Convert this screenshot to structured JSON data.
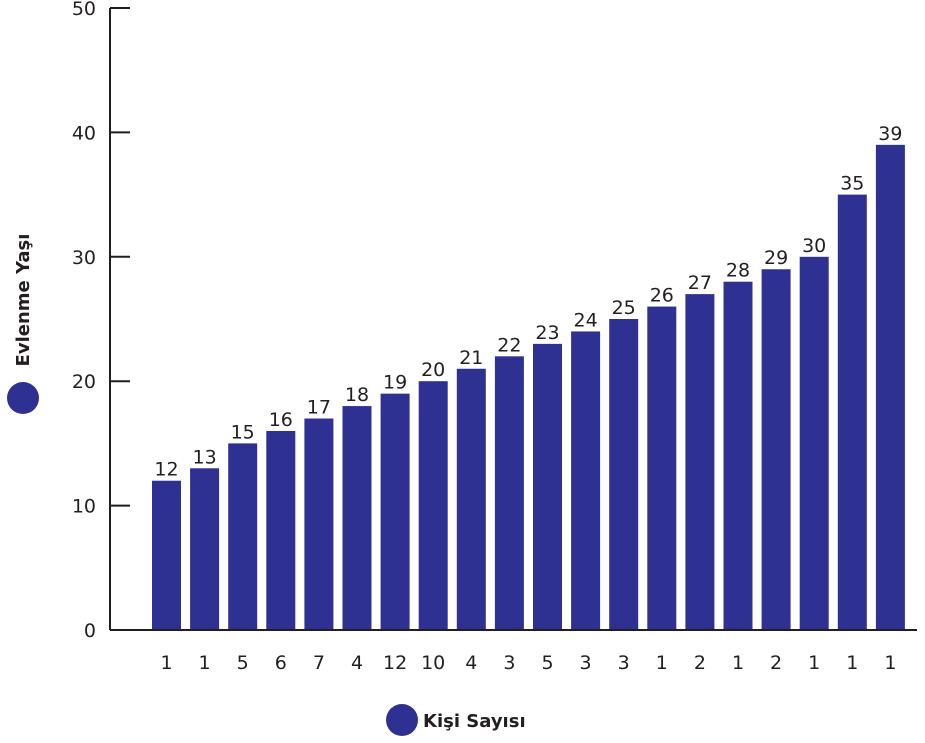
{
  "chart_data": {
    "type": "bar",
    "categories": [
      "1",
      "1",
      "5",
      "6",
      "7",
      "4",
      "12",
      "10",
      "4",
      "3",
      "5",
      "3",
      "3",
      "1",
      "2",
      "1",
      "2",
      "1",
      "1",
      "1"
    ],
    "values": [
      12,
      13,
      15,
      16,
      17,
      18,
      19,
      20,
      21,
      22,
      23,
      24,
      25,
      26,
      27,
      28,
      29,
      30,
      35,
      39
    ],
    "xlabel": "Kişi Sayısı",
    "ylabel": "Evlenme Yaşı",
    "ylim": [
      0,
      50
    ],
    "yticks": [
      0,
      10,
      20,
      30,
      40,
      50
    ],
    "grid": false,
    "legend": "none",
    "colors": {
      "bar": "#2e3192",
      "axis": "#231f20",
      "text": "#231f20"
    }
  }
}
